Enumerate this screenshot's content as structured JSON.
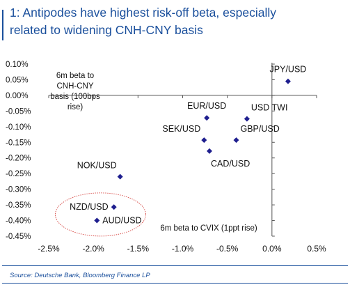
{
  "title_line1": "1: Antipodes have highest risk-off beta, especially",
  "title_line2": "related to widening CNH-CNY basis",
  "source": "Source:  Deutsche Bank, Bloomberg Finance LP",
  "colors": {
    "accent": "#1a4f9c",
    "marker": "#1f1f8f",
    "circle": "#d9534f"
  },
  "chart_data": {
    "type": "scatter",
    "title": "1: Antipodes have highest risk-off beta, especially related to widening CNH-CNY basis",
    "xlabel": "6m beta to CVIX (1ppt rise)",
    "ylabel_lines": [
      "6m beta to",
      "CNH-CNY",
      "basis (100bps",
      "rise)"
    ],
    "xlim": [
      -2.5,
      0.5
    ],
    "ylim": [
      -0.45,
      0.1
    ],
    "x_ticks": [
      -2.5,
      -2.0,
      -1.5,
      -1.0,
      -0.5,
      0.0,
      0.5
    ],
    "x_tick_labels": [
      "-2.5%",
      "-2.0%",
      "-1.5%",
      "-1.0%",
      "-0.5%",
      "0.0%",
      "0.5%"
    ],
    "y_ticks": [
      0.1,
      0.05,
      0.0,
      -0.05,
      -0.1,
      -0.15,
      -0.2,
      -0.25,
      -0.3,
      -0.35,
      -0.4,
      -0.45
    ],
    "y_tick_labels": [
      "0.10%",
      "0.05%",
      "0.00%",
      "-0.05%",
      "-0.10%",
      "-0.15%",
      "-0.20%",
      "-0.25%",
      "-0.30%",
      "-0.35%",
      "-0.40%",
      "-0.45%"
    ],
    "grid": false,
    "points": [
      {
        "label": "JPY/USD",
        "x": 0.18,
        "y": 0.045,
        "label_pos": "above"
      },
      {
        "label": "EUR/USD",
        "x": -0.73,
        "y": -0.072,
        "label_pos": "above"
      },
      {
        "label": "USD TWI",
        "x": -0.28,
        "y": -0.075,
        "label_pos": "above-right"
      },
      {
        "label": "SEK/USD",
        "x": -0.76,
        "y": -0.143,
        "label_pos": "above-left"
      },
      {
        "label": "GBP/USD",
        "x": -0.4,
        "y": -0.143,
        "label_pos": "above-right"
      },
      {
        "label": "CAD/USD",
        "x": -0.7,
        "y": -0.178,
        "label_pos": "below-right"
      },
      {
        "label": "NOK/USD",
        "x": -1.7,
        "y": -0.26,
        "label_pos": "above-left"
      },
      {
        "label": "NZD/USD",
        "x": -1.77,
        "y": -0.357,
        "label_pos": "left"
      },
      {
        "label": "AUD/USD",
        "x": -1.96,
        "y": -0.4,
        "label_pos": "right"
      }
    ],
    "highlight": "NZD/USD and AUD/USD circled"
  }
}
